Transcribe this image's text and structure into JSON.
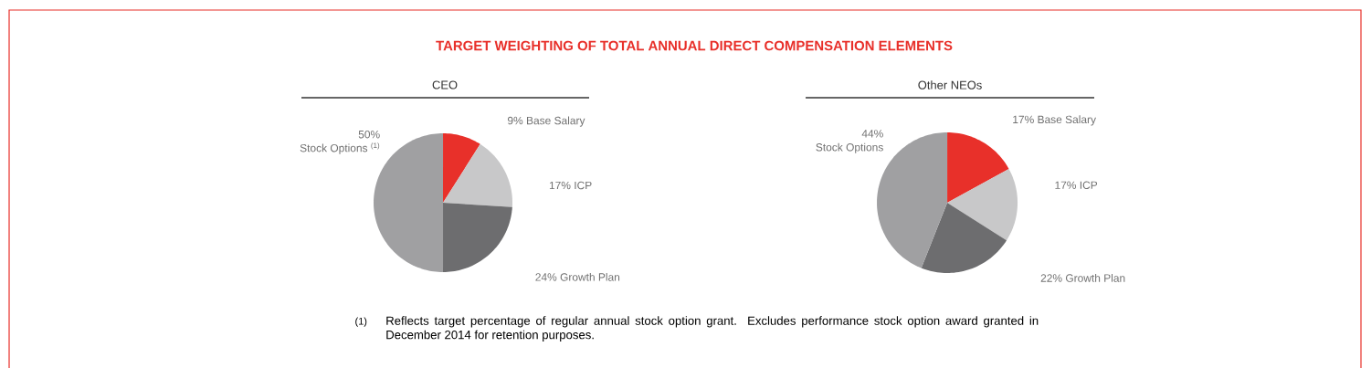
{
  "chart_data": [
    {
      "type": "pie",
      "title": "TARGET WEIGHTING OF TOTAL ANNUAL DIRECT COMPENSATION ELEMENTS",
      "subtitle": "CEO",
      "categories": [
        "Base Salary",
        "ICP",
        "Growth Plan",
        "Stock Options $^{(1)}$"
      ],
      "values": [
        9,
        17,
        24,
        50
      ],
      "value_labels": [
        "9%",
        "17%",
        "24%",
        "50%"
      ],
      "colors": [
        "#e8302a",
        "#c8c8c9",
        "#6d6d6f",
        "#a0a0a2"
      ],
      "annotations": [
        "(1)",
        "Reflects target percentage of regular annual stock option grant. Excludes performance stock option award granted in December 2014 for retention purposes."
      ]
    },
    {
      "type": "pie",
      "subtitle": "Other NEOs",
      "categories": [
        "Base Salary",
        "ICP",
        "Growth Plan",
        "Stock Options"
      ],
      "values": [
        17,
        17,
        22,
        44
      ],
      "value_labels": [
        "17%",
        "17%",
        "22%",
        "44%"
      ],
      "colors": [
        "#e8302a",
        "#c8c8c9",
        "#6d6d6f",
        "#a0a0a2"
      ]
    }
  ]
}
